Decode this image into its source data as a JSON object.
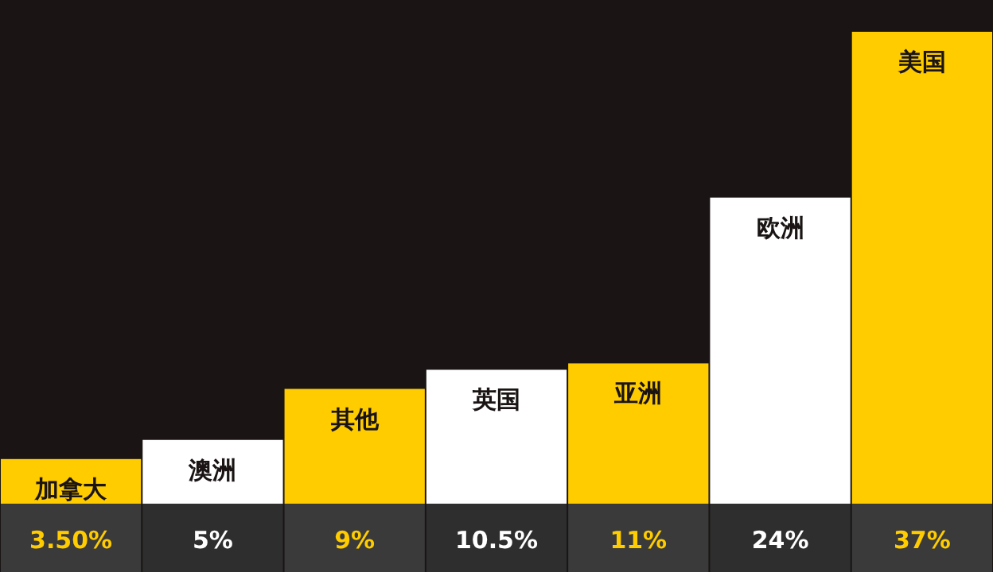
{
  "chart_data": {
    "type": "bar",
    "categories": [
      "加拿大",
      "澳洲",
      "其他",
      "英国",
      "亚洲",
      "欧洲",
      "美国"
    ],
    "values": [
      3.5,
      5,
      9,
      10.5,
      11,
      24,
      37
    ],
    "colors": [
      "#ffcc00",
      "#ffffff",
      "#ffcc00",
      "#ffffff",
      "#ffcc00",
      "#ffffff",
      "#ffcc00"
    ],
    "value_labels": [
      "3.50%",
      "5%",
      "9%",
      "10.5%",
      "11%",
      "24%",
      "37%"
    ]
  }
}
